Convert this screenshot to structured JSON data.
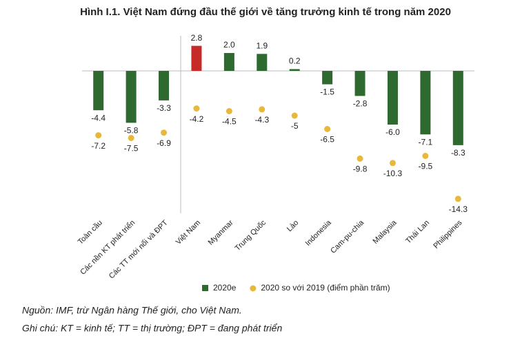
{
  "chart_data": {
    "type": "bar",
    "title": "Hình I.1. Việt Nam đứng đầu thế giới về tăng trưởng kinh tế trong năm 2020",
    "categories": [
      "Toàn cầu",
      "Các nền KT phát triển",
      "Các TT mới nổi và ĐPT",
      "Việt Nam",
      "Myanmar",
      "Trung Quốc",
      "Lào",
      "Indonesia",
      "Cam-pu-chia",
      "Malaysia",
      "Thái Lan",
      "Philippines"
    ],
    "series": [
      {
        "name": "2020e",
        "type": "bar",
        "color": "#2e6a2f",
        "colors": [
          "#2e6a2f",
          "#2e6a2f",
          "#2e6a2f",
          "#c62b27",
          "#2e6a2f",
          "#2e6a2f",
          "#2e6a2f",
          "#2e6a2f",
          "#2e6a2f",
          "#2e6a2f",
          "#2e6a2f",
          "#2e6a2f"
        ],
        "values": [
          -4.4,
          -5.8,
          -3.3,
          2.8,
          2.0,
          1.9,
          0.2,
          -1.5,
          -2.8,
          -6.0,
          -7.1,
          -8.3
        ],
        "value_labels": [
          "-4.4",
          "-5.8",
          "-3.3",
          "2.8",
          "2.0",
          "1.9",
          "0.2",
          "-1.5",
          "-2.8",
          "-6.0",
          "-7.1",
          "-8.3"
        ]
      },
      {
        "name": "2020 so với 2019 (điểm phần trăm)",
        "type": "scatter",
        "color": "#e8b83a",
        "values": [
          -7.2,
          -7.5,
          -6.9,
          -4.2,
          -4.5,
          -4.3,
          -5.0,
          -6.5,
          -9.8,
          -10.3,
          -9.5,
          -14.3
        ]
      }
    ],
    "ylim": [
      -15,
      3
    ],
    "source": "Nguồn: IMF, trừ Ngân hàng Thế giới, cho Việt Nam.",
    "note": "Ghi chú: KT = kinh tế; TT = thị trường; ĐPT = đang phát triển"
  }
}
